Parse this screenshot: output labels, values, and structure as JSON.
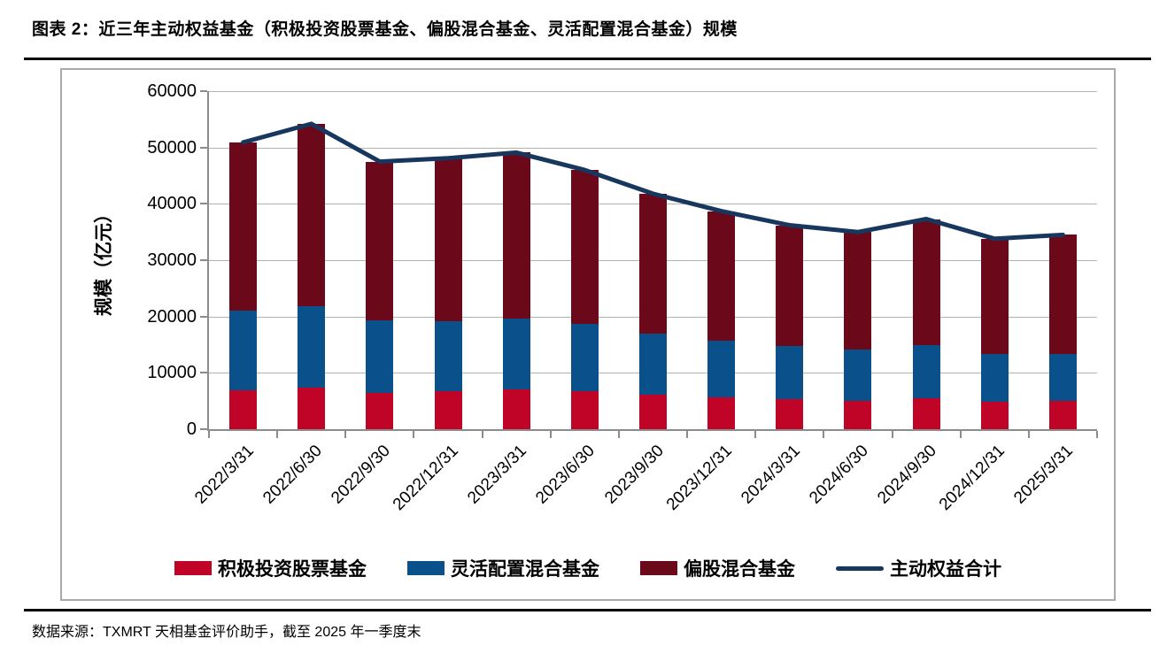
{
  "page": {
    "title": "图表 2：近三年主动权益基金（积极投资股票基金、偏股混合基金、灵活配置混合基金）规模",
    "source_note": "数据来源：TXMRT 天相基金评价助手，截至 2025 年一季度末"
  },
  "chart_data": {
    "type": "bar",
    "subtype": "stacked-bars-with-total-line",
    "title": "",
    "xlabel": "",
    "ylabel": "规模（亿元）",
    "ylim": [
      0,
      60000
    ],
    "y_ticks": [
      0,
      10000,
      20000,
      30000,
      40000,
      50000,
      60000
    ],
    "grid": true,
    "legend_position": "bottom",
    "categories": [
      "2022/3/31",
      "2022/6/30",
      "2022/9/30",
      "2022/12/31",
      "2023/3/31",
      "2023/6/30",
      "2023/9/30",
      "2023/12/31",
      "2024/3/31",
      "2024/6/30",
      "2024/9/30",
      "2024/12/31",
      "2025/3/31"
    ],
    "series": [
      {
        "name": "积极投资股票基金",
        "type": "bar",
        "color": "#c00428",
        "values": [
          6900,
          7400,
          6500,
          6700,
          7000,
          6700,
          6200,
          5700,
          5300,
          5100,
          5500,
          4900,
          5100
        ]
      },
      {
        "name": "灵活配置混合基金",
        "type": "bar",
        "color": "#0a518c",
        "values": [
          14100,
          14500,
          12800,
          12500,
          12700,
          12000,
          10700,
          10000,
          9400,
          9000,
          9400,
          8400,
          8300
        ]
      },
      {
        "name": "偏股混合基金",
        "type": "bar",
        "color": "#6b0819",
        "values": [
          29900,
          32300,
          28200,
          28900,
          29400,
          27300,
          24900,
          23000,
          21500,
          20900,
          22400,
          20500,
          21100
        ]
      },
      {
        "name": "主动权益合计",
        "type": "line",
        "color": "#17375e",
        "values": [
          50900,
          54200,
          47500,
          48100,
          49100,
          46000,
          41800,
          38700,
          36200,
          35000,
          37300,
          33800,
          34500
        ]
      }
    ]
  },
  "style_colors": {
    "axis": "#8c8c8c",
    "gridline": "#b3b3b3",
    "figure_border": "#a9a9a9",
    "rule": "#000000"
  }
}
